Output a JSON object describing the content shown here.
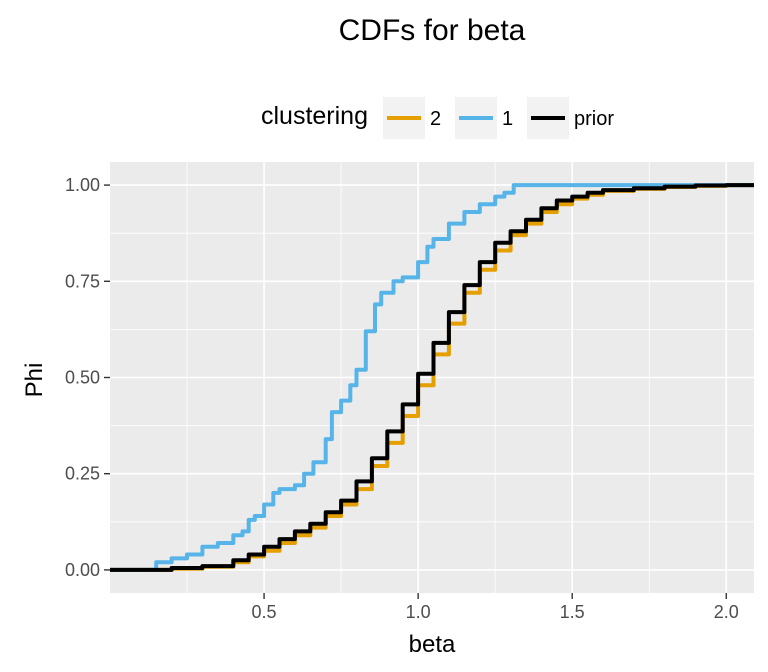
{
  "chart_data": {
    "type": "line",
    "title": "CDFs for  beta",
    "xlabel": "beta",
    "ylabel": "Phi",
    "xlim": [
      0.0,
      2.09
    ],
    "ylim": [
      -0.06,
      1.06
    ],
    "x_ticks": [
      0.5,
      1.0,
      1.5,
      2.0
    ],
    "x_tick_labels": [
      "0.5",
      "1.0",
      "1.5",
      "2.0"
    ],
    "y_ticks": [
      0.0,
      0.25,
      0.5,
      0.75,
      1.0
    ],
    "y_tick_labels": [
      "0.00",
      "0.25",
      "0.50",
      "0.75",
      "1.00"
    ],
    "grid": true,
    "legend": {
      "title": "clustering",
      "placement": "top",
      "entries": [
        {
          "label": "2",
          "color": "#E69F00"
        },
        {
          "label": "1",
          "color": "#56B4E9"
        },
        {
          "label": "prior",
          "color": "#000000"
        }
      ]
    },
    "series": [
      {
        "name": "2",
        "color": "#E69F00",
        "x": [
          0.0,
          0.1,
          0.2,
          0.3,
          0.4,
          0.45,
          0.5,
          0.55,
          0.6,
          0.65,
          0.7,
          0.75,
          0.8,
          0.85,
          0.9,
          0.95,
          1.0,
          1.05,
          1.1,
          1.15,
          1.2,
          1.25,
          1.3,
          1.35,
          1.4,
          1.45,
          1.5,
          1.55,
          1.6,
          1.7,
          1.8,
          1.9,
          2.0,
          2.09
        ],
        "y": [
          0.0,
          0.0,
          0.003,
          0.008,
          0.02,
          0.035,
          0.05,
          0.07,
          0.09,
          0.11,
          0.14,
          0.17,
          0.21,
          0.27,
          0.33,
          0.4,
          0.48,
          0.56,
          0.64,
          0.72,
          0.78,
          0.83,
          0.87,
          0.9,
          0.93,
          0.95,
          0.965,
          0.975,
          0.985,
          0.99,
          0.995,
          0.998,
          1.0,
          1.0
        ]
      },
      {
        "name": "1",
        "color": "#56B4E9",
        "x": [
          0.0,
          0.09,
          0.15,
          0.2,
          0.25,
          0.3,
          0.35,
          0.4,
          0.43,
          0.45,
          0.47,
          0.5,
          0.53,
          0.55,
          0.6,
          0.63,
          0.66,
          0.7,
          0.72,
          0.75,
          0.78,
          0.8,
          0.83,
          0.86,
          0.88,
          0.92,
          0.95,
          1.0,
          1.03,
          1.05,
          1.1,
          1.15,
          1.2,
          1.25,
          1.28,
          1.31,
          1.4,
          1.6,
          2.09
        ],
        "y": [
          0.0,
          0.0,
          0.02,
          0.03,
          0.04,
          0.06,
          0.07,
          0.09,
          0.1,
          0.13,
          0.14,
          0.17,
          0.2,
          0.21,
          0.22,
          0.25,
          0.28,
          0.34,
          0.41,
          0.44,
          0.48,
          0.52,
          0.62,
          0.69,
          0.72,
          0.75,
          0.76,
          0.8,
          0.84,
          0.86,
          0.9,
          0.93,
          0.95,
          0.97,
          0.98,
          1.0,
          1.0,
          1.0,
          1.0
        ]
      },
      {
        "name": "prior",
        "color": "#000000",
        "x": [
          0.0,
          0.1,
          0.2,
          0.3,
          0.4,
          0.45,
          0.5,
          0.55,
          0.6,
          0.65,
          0.7,
          0.75,
          0.8,
          0.85,
          0.9,
          0.95,
          1.0,
          1.05,
          1.1,
          1.15,
          1.2,
          1.25,
          1.3,
          1.35,
          1.4,
          1.45,
          1.5,
          1.55,
          1.6,
          1.7,
          1.8,
          1.9,
          2.0,
          2.09
        ],
        "y": [
          0.0,
          0.0,
          0.005,
          0.01,
          0.025,
          0.04,
          0.06,
          0.08,
          0.1,
          0.12,
          0.15,
          0.18,
          0.23,
          0.29,
          0.36,
          0.43,
          0.51,
          0.59,
          0.67,
          0.74,
          0.8,
          0.85,
          0.88,
          0.91,
          0.94,
          0.96,
          0.97,
          0.98,
          0.987,
          0.992,
          0.996,
          0.999,
          1.0,
          1.0
        ]
      }
    ]
  }
}
